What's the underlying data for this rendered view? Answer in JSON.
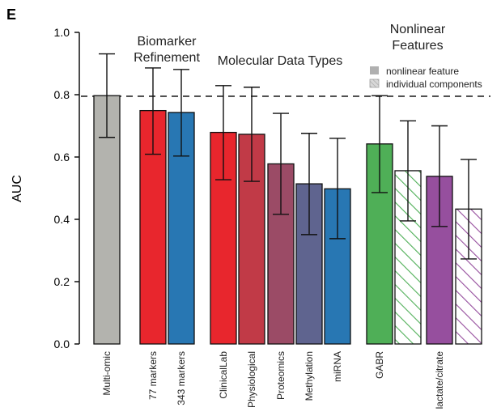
{
  "panel_label": "E",
  "chart_data": {
    "type": "bar",
    "ylabel": "AUC",
    "ylim": [
      0.0,
      1.0
    ],
    "yticks": [
      "0.0",
      "0.2",
      "0.4",
      "0.6",
      "0.8",
      "1.0"
    ],
    "reference_line": 0.795,
    "group_labels": [
      {
        "id": "biomarker",
        "lines": [
          "Biomarker",
          "Refinement"
        ]
      },
      {
        "id": "molecular",
        "lines": [
          "Molecular Data Types"
        ]
      },
      {
        "id": "nonlinear",
        "lines": [
          "Nonlinear",
          "Features"
        ]
      }
    ],
    "legend": [
      "nonlinear feature",
      "individual components"
    ],
    "categories": [
      "Multi-omic",
      "77 markers",
      "343 markers",
      "ClinicalLab",
      "Physiological",
      "Proteomics",
      "Methylation",
      "miRNA",
      "GABR",
      "",
      "lactate/citrate",
      ""
    ],
    "bars": [
      {
        "value": 0.797,
        "err_low": 0.663,
        "err_high": 0.931,
        "color": "#b3b3ae",
        "hatched": false
      },
      {
        "value": 0.749,
        "err_low": 0.609,
        "err_high": 0.886,
        "color": "#e8262d",
        "hatched": false
      },
      {
        "value": 0.743,
        "err_low": 0.603,
        "err_high": 0.881,
        "color": "#2877b3",
        "hatched": false
      },
      {
        "value": 0.679,
        "err_low": 0.527,
        "err_high": 0.829,
        "color": "#e8262d",
        "hatched": false
      },
      {
        "value": 0.673,
        "err_low": 0.522,
        "err_high": 0.824,
        "color": "#c13a47",
        "hatched": false
      },
      {
        "value": 0.578,
        "err_low": 0.416,
        "err_high": 0.74,
        "color": "#9b4b66",
        "hatched": false
      },
      {
        "value": 0.514,
        "err_low": 0.351,
        "err_high": 0.676,
        "color": "#5f648f",
        "hatched": false
      },
      {
        "value": 0.498,
        "err_low": 0.338,
        "err_high": 0.66,
        "color": "#2877b3",
        "hatched": false
      },
      {
        "value": 0.642,
        "err_low": 0.486,
        "err_high": 0.797,
        "color": "#4faf57",
        "hatched": false
      },
      {
        "value": 0.556,
        "err_low": 0.395,
        "err_high": 0.716,
        "color": "#4faf57",
        "hatched": true
      },
      {
        "value": 0.538,
        "err_low": 0.377,
        "err_high": 0.7,
        "color": "#964f9e",
        "hatched": false
      },
      {
        "value": 0.433,
        "err_low": 0.273,
        "err_high": 0.592,
        "color": "#964f9e",
        "hatched": true
      }
    ]
  }
}
